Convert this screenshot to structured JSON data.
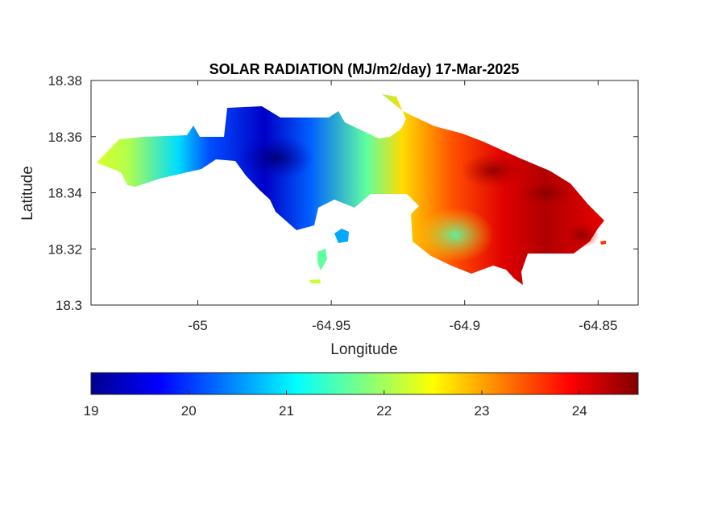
{
  "chart_data": {
    "type": "heatmap",
    "title": "SOLAR RADIATION (MJ/m2/day) 17-Mar-2025",
    "xlabel": "Longitude",
    "ylabel": "Latitude",
    "xlim": [
      -65.04,
      -64.835
    ],
    "ylim": [
      18.3,
      18.38
    ],
    "x_ticks": [
      -65,
      -64.95,
      -64.9,
      -64.85
    ],
    "x_tick_labels": [
      "-65",
      "-64.95",
      "-64.9",
      "-64.85"
    ],
    "y_ticks": [
      18.38,
      18.36,
      18.34,
      18.32,
      18.3
    ],
    "y_tick_labels": [
      "18.38",
      "18.36",
      "18.34",
      "18.32",
      "18.3"
    ],
    "grid": false,
    "colormap": "jet",
    "colorbar": {
      "location": "bottom",
      "range": [
        19,
        24.6
      ],
      "ticks": [
        19,
        20,
        21,
        22,
        23,
        24
      ],
      "tick_labels": [
        "19",
        "20",
        "21",
        "22",
        "23",
        "24"
      ]
    },
    "value_samples": [
      {
        "lon": -65.03,
        "lat": 18.352,
        "value": 22.1
      },
      {
        "lon": -65.015,
        "lat": 18.355,
        "value": 21.7
      },
      {
        "lon": -64.99,
        "lat": 18.357,
        "value": 20.7
      },
      {
        "lon": -64.97,
        "lat": 18.351,
        "value": 19.1
      },
      {
        "lon": -64.96,
        "lat": 18.348,
        "value": 19.6
      },
      {
        "lon": -64.945,
        "lat": 18.352,
        "value": 21.2
      },
      {
        "lon": -64.935,
        "lat": 18.35,
        "value": 22.6
      },
      {
        "lon": -64.915,
        "lat": 18.36,
        "value": 23.2
      },
      {
        "lon": -64.91,
        "lat": 18.328,
        "value": 21.8
      },
      {
        "lon": -64.895,
        "lat": 18.349,
        "value": 24.3
      },
      {
        "lon": -64.885,
        "lat": 18.343,
        "value": 24.5
      },
      {
        "lon": -64.87,
        "lat": 18.341,
        "value": 24.4
      },
      {
        "lon": -64.86,
        "lat": 18.325,
        "value": 24.5
      },
      {
        "lon": -64.895,
        "lat": 18.318,
        "value": 22.9
      }
    ],
    "colors": {
      "jet": [
        "#00008f",
        "#0000ff",
        "#0080ff",
        "#00ffff",
        "#80ff80",
        "#ffff00",
        "#ff8000",
        "#ff0000",
        "#800000"
      ],
      "axis": "#262626",
      "background": "#ffffff"
    }
  }
}
